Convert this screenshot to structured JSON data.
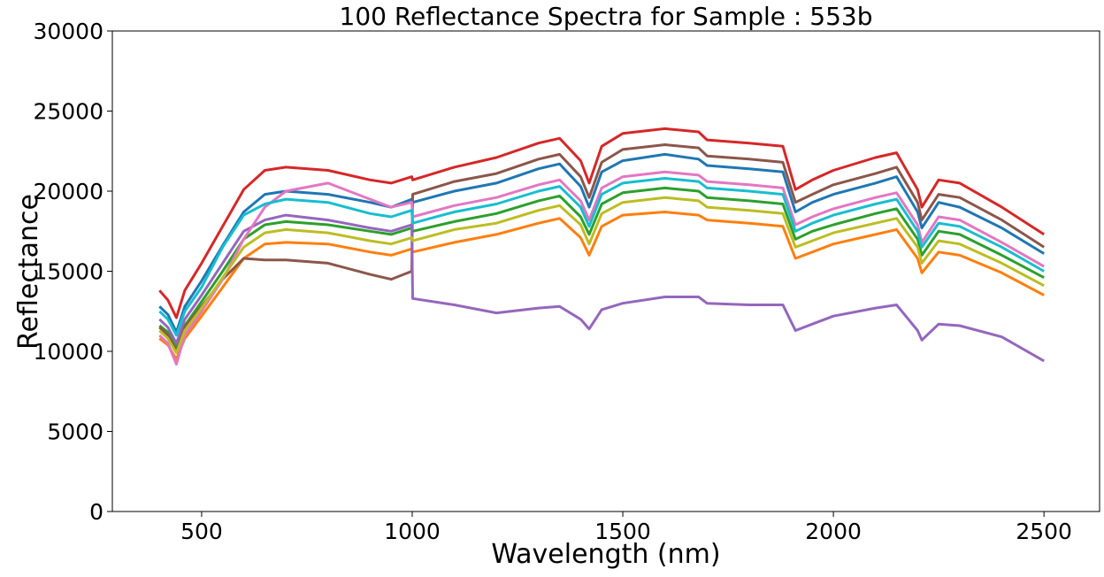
{
  "chart_data": {
    "type": "line",
    "title": "100 Reflectance Spectra for Sample : 553b",
    "x_label": "Wavelength (nm)",
    "y_label": "Reflectance",
    "x": [
      400,
      420,
      440,
      460,
      500,
      550,
      600,
      650,
      700,
      800,
      900,
      950,
      999,
      1001,
      1100,
      1200,
      1300,
      1350,
      1400,
      1420,
      1450,
      1500,
      1600,
      1680,
      1700,
      1800,
      1880,
      1910,
      1950,
      2000,
      2100,
      2150,
      2200,
      2210,
      2250,
      2300,
      2400,
      2500
    ],
    "series": [
      {
        "color": "#1f77b4",
        "values": [
          12800,
          12300,
          11200,
          12800,
          14400,
          16600,
          18700,
          19800,
          20000,
          19800,
          19300,
          19000,
          19500,
          19300,
          20000,
          20500,
          21400,
          21700,
          20300,
          19000,
          21200,
          21900,
          22300,
          22000,
          21600,
          21400,
          21200,
          18700,
          19300,
          19800,
          20500,
          20900,
          18700,
          17700,
          19300,
          19000,
          17700,
          16100
        ]
      },
      {
        "color": "#ff7f0e",
        "values": [
          10800,
          10400,
          9500,
          10800,
          12200,
          14000,
          15800,
          16700,
          16800,
          16700,
          16200,
          16000,
          16400,
          16200,
          16800,
          17300,
          18000,
          18300,
          17100,
          16000,
          17800,
          18500,
          18700,
          18500,
          18200,
          18000,
          17800,
          15800,
          16200,
          16700,
          17300,
          17600,
          15800,
          14900,
          16200,
          16000,
          14900,
          13500
        ]
      },
      {
        "color": "#2ca02c",
        "values": [
          11600,
          11200,
          10200,
          11600,
          13100,
          15000,
          17000,
          17900,
          18100,
          17900,
          17500,
          17300,
          17700,
          17500,
          18100,
          18600,
          19400,
          19700,
          18400,
          17300,
          19200,
          19900,
          20200,
          20000,
          19600,
          19400,
          19200,
          17000,
          17500,
          17900,
          18600,
          18900,
          17000,
          16000,
          17500,
          17300,
          16000,
          14600
        ]
      },
      {
        "color": "#8c564b",
        "values": [
          11500,
          11000,
          10000,
          11500,
          12800,
          14500,
          15800,
          15700,
          15700,
          15500,
          14800,
          14500,
          15000,
          19800,
          20600,
          21100,
          22000,
          22300,
          20900,
          19600,
          21800,
          22600,
          22900,
          22700,
          22200,
          22000,
          21800,
          19300,
          19800,
          20400,
          21100,
          21500,
          19300,
          18200,
          19800,
          19600,
          18200,
          16500
        ]
      },
      {
        "color": "#9467bd",
        "values": [
          12000,
          11500,
          10500,
          12000,
          13500,
          15500,
          17500,
          18200,
          18500,
          18200,
          17700,
          17500,
          17900,
          13300,
          12900,
          12400,
          12700,
          12800,
          12000,
          11400,
          12600,
          13000,
          13400,
          13400,
          13000,
          12900,
          12900,
          11300,
          11700,
          12200,
          12700,
          12900,
          11300,
          10700,
          11700,
          11600,
          10900,
          9400
        ]
      },
      {
        "color": "#e377c2",
        "values": [
          11000,
          10500,
          9200,
          11000,
          12500,
          14500,
          17000,
          19000,
          20000,
          20500,
          19500,
          19000,
          19300,
          18400,
          19100,
          19600,
          20400,
          20700,
          19400,
          18200,
          20200,
          20900,
          21200,
          21000,
          20600,
          20400,
          20200,
          17900,
          18400,
          18900,
          19600,
          19900,
          17900,
          16800,
          18400,
          18200,
          16800,
          15300
        ]
      },
      {
        "color": "#bcbd22",
        "values": [
          11300,
          10800,
          9900,
          11300,
          12700,
          14600,
          16500,
          17400,
          17600,
          17400,
          16900,
          16700,
          17100,
          16900,
          17600,
          18000,
          18800,
          19100,
          17900,
          16700,
          18600,
          19300,
          19600,
          19400,
          19000,
          18800,
          18600,
          16500,
          16900,
          17400,
          18000,
          18300,
          16500,
          15500,
          16900,
          16700,
          15500,
          14100
        ]
      },
      {
        "color": "#17becf",
        "values": [
          12500,
          12000,
          11000,
          12500,
          14000,
          16500,
          18500,
          19200,
          19500,
          19300,
          18600,
          18400,
          18800,
          18000,
          18700,
          19200,
          20000,
          20300,
          19000,
          17800,
          19800,
          20500,
          20800,
          20600,
          20200,
          20000,
          19800,
          17500,
          18000,
          18500,
          19200,
          19500,
          17500,
          16500,
          18000,
          17800,
          16500,
          15000
        ]
      },
      {
        "color": "#d62728",
        "values": [
          13800,
          13200,
          12100,
          13800,
          15500,
          17800,
          20100,
          21300,
          21500,
          21300,
          20700,
          20500,
          20900,
          20700,
          21500,
          22100,
          23000,
          23300,
          21900,
          20500,
          22800,
          23600,
          23900,
          23700,
          23200,
          23000,
          22800,
          20100,
          20700,
          21300,
          22100,
          22400,
          20100,
          19000,
          20700,
          20500,
          19000,
          17300
        ]
      }
    ],
    "xlim": [
      288,
      2632
    ],
    "ylim": [
      0,
      30000
    ],
    "xticks": [
      500,
      1000,
      1500,
      2000,
      2500
    ],
    "yticks": [
      0,
      5000,
      10000,
      15000,
      20000,
      25000,
      30000
    ]
  }
}
